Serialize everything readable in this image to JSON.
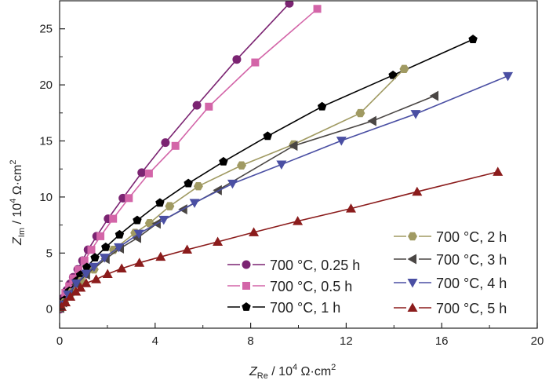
{
  "chart_data": {
    "type": "scatter",
    "xlabel": {
      "main": "Z",
      "sub": "Re",
      "rest": " / 10",
      "sup": "4",
      "unit": " Ω·cm",
      "unit_sup": "2"
    },
    "ylabel": {
      "main": "Z",
      "sub": "Im",
      "rest": " / 10",
      "sup": "4",
      "unit": " Ω·cm",
      "unit_sup": "2"
    },
    "xlim": [
      0,
      20
    ],
    "ylim": [
      -1.7,
      27.5
    ],
    "x_ticks": [
      0,
      4,
      8,
      12,
      16,
      20
    ],
    "y_ticks": [
      0,
      5,
      10,
      15,
      20,
      25
    ],
    "x_tick_labels": [
      "0",
      "4",
      "8",
      "12",
      "16",
      "20"
    ],
    "y_tick_labels": [
      "0",
      "5",
      "10",
      "15",
      "20",
      "25"
    ],
    "grid": false,
    "legend_placement": "bottom-right",
    "series": [
      {
        "name": "700 °C, 0.25 h",
        "color": "#7b2472",
        "marker": "circle",
        "x": [
          0.02,
          0.08,
          0.15,
          0.3,
          0.44,
          0.57,
          0.76,
          0.96,
          1.19,
          1.55,
          2.03,
          2.65,
          3.44,
          4.43,
          5.75,
          7.42,
          9.62
        ],
        "y": [
          0,
          0.4,
          0.98,
          1.68,
          2.26,
          2.84,
          3.54,
          4.32,
          5.29,
          6.5,
          8.06,
          9.9,
          12.17,
          14.85,
          18.18,
          22.27,
          27.27
        ]
      },
      {
        "name": "700 °C, 0.5 h",
        "color": "#d365a8",
        "marker": "square",
        "x": [
          0.08,
          0.24,
          0.4,
          0.57,
          0.79,
          1.04,
          1.33,
          1.71,
          2.24,
          2.9,
          3.74,
          4.85,
          6.25,
          8.19,
          10.79
        ],
        "y": [
          0.51,
          1.45,
          2.03,
          2.73,
          3.5,
          4.32,
          5.29,
          6.5,
          8.06,
          9.9,
          12.1,
          14.56,
          18.06,
          22.0,
          26.78
        ]
      },
      {
        "name": "700 °C, 1 h",
        "color": "#000000",
        "marker": "pentagon",
        "x": [
          0.05,
          0.2,
          0.4,
          0.7,
          0.87,
          1.14,
          1.48,
          1.93,
          2.51,
          3.25,
          4.2,
          5.39,
          6.86,
          8.71,
          10.99,
          13.96,
          17.31
        ],
        "y": [
          0.2,
          0.8,
          1.6,
          2.5,
          3.04,
          3.73,
          4.59,
          5.52,
          6.64,
          7.92,
          9.48,
          11.21,
          13.15,
          15.43,
          18.06,
          20.86,
          24.06
        ]
      },
      {
        "name": "700 °C, 2 h",
        "color": "#a09a62",
        "marker": "hexagon",
        "x": [
          0.05,
          0.2,
          0.5,
          0.9,
          1.44,
          2.26,
          3.16,
          3.77,
          4.61,
          5.81,
          7.62,
          9.8,
          12.59,
          14.43
        ],
        "y": [
          0.1,
          0.6,
          1.5,
          2.5,
          3.54,
          5.29,
          6.8,
          7.67,
          9.18,
          10.96,
          12.82,
          14.69,
          17.48,
          21.42
        ]
      },
      {
        "name": "700 °C, 3 h",
        "color": "#4a4644",
        "marker": "triangle-left",
        "x": [
          0.03,
          0.15,
          0.4,
          0.7,
          1.11,
          1.93,
          2.53,
          3.25,
          4.07,
          5.18,
          6.63,
          9.8,
          13.1,
          15.7
        ],
        "y": [
          0.1,
          0.6,
          1.4,
          2.2,
          3.08,
          4.48,
          5.41,
          6.34,
          7.62,
          8.9,
          10.61,
          14.57,
          16.78,
          19.02
        ]
      },
      {
        "name": "700 °C, 4 h",
        "color": "#4a4fa3",
        "marker": "triangle-down",
        "x": [
          0.1,
          0.35,
          0.7,
          1.11,
          1.44,
          1.88,
          2.48,
          3.32,
          4.36,
          5.65,
          7.24,
          9.29,
          11.8,
          14.91,
          18.77
        ],
        "y": [
          0.4,
          1.3,
          2.3,
          3.16,
          3.78,
          4.59,
          5.52,
          6.73,
          7.97,
          9.48,
          11.19,
          12.9,
          15.03,
          17.41,
          20.79
        ]
      },
      {
        "name": "700 °C, 5 h",
        "color": "#8b1c1c",
        "marker": "triangle-up",
        "x": [
          0.08,
          0.25,
          0.45,
          0.68,
          0.88,
          1.11,
          1.53,
          2.01,
          2.6,
          3.34,
          4.23,
          5.34,
          6.62,
          8.13,
          9.97,
          12.2,
          14.97,
          18.35
        ],
        "y": [
          0.2,
          0.6,
          1.1,
          1.56,
          1.91,
          2.31,
          2.66,
          3.13,
          3.62,
          4.13,
          4.66,
          5.3,
          6.0,
          6.85,
          7.85,
          8.97,
          10.47,
          12.24
        ]
      }
    ]
  }
}
